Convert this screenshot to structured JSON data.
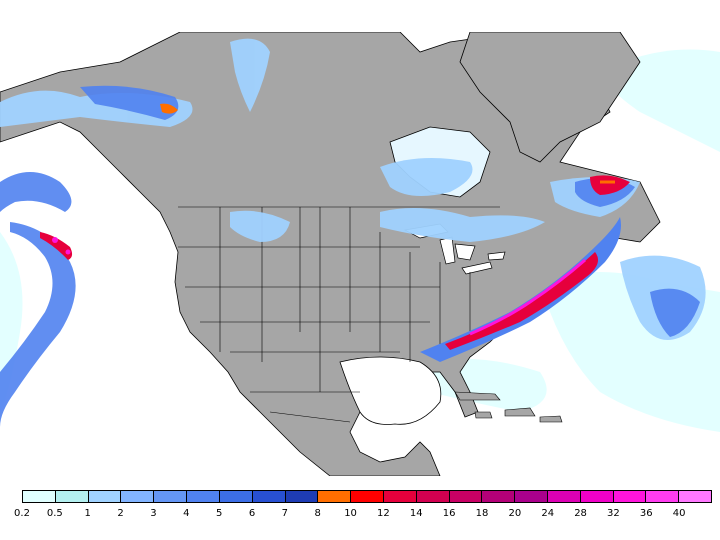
{
  "map": {
    "land_color": "#a6a6a6",
    "ocean_color": "#ffffff",
    "border_color": "#000000",
    "region": "North America"
  },
  "legend": {
    "colors": [
      "#e0ffff",
      "#b4f0f0",
      "#a0d2ff",
      "#82b4ff",
      "#6496f5",
      "#5082f0",
      "#3c6ee6",
      "#2850d2",
      "#1e3cb4",
      "#ff6e00",
      "#ff0000",
      "#e6003c",
      "#d20050",
      "#c80064",
      "#b40078",
      "#aa008c",
      "#dc00b4",
      "#f000c8",
      "#ff14dc",
      "#ff3cf0",
      "#ff78ff"
    ],
    "labels": [
      "0.2",
      "0.5",
      "1",
      "2",
      "3",
      "4",
      "5",
      "6",
      "7",
      "8",
      "10",
      "12",
      "14",
      "16",
      "18",
      "20",
      "24",
      "28",
      "32",
      "36",
      "40"
    ]
  }
}
